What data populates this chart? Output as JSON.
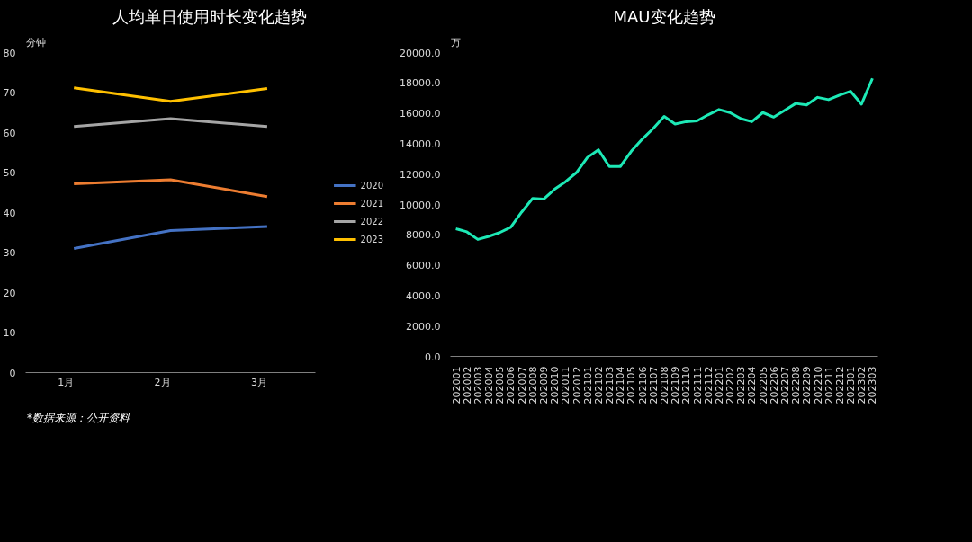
{
  "chart_data": [
    {
      "type": "line",
      "title": "人均单日使用时长变化趋势",
      "ylabel": "分钟",
      "categories": [
        "1月",
        "2月",
        "3月"
      ],
      "series": [
        {
          "name": "2020",
          "color": "#4472c4",
          "values": [
            31,
            35.5,
            36.5
          ]
        },
        {
          "name": "2021",
          "color": "#ed7d31",
          "values": [
            47.2,
            48.2,
            44
          ]
        },
        {
          "name": "2022",
          "color": "#a5a5a5",
          "values": [
            61.5,
            63.5,
            61.5
          ]
        },
        {
          "name": "2023",
          "color": "#ffc000",
          "values": [
            71.2,
            67.8,
            71
          ]
        }
      ],
      "ylim": [
        0,
        80
      ],
      "yticks": [
        0,
        10,
        20,
        30,
        40,
        50,
        60,
        70,
        80
      ],
      "grid": false,
      "legend": "right",
      "marker": "none",
      "line_style": "solid",
      "annotations": [
        "*数据来源：公开资料"
      ]
    },
    {
      "type": "line",
      "title": "MAU变化趋势",
      "ylabel": "万",
      "categories": [
        "202001",
        "202002",
        "202003",
        "202004",
        "202005",
        "202006",
        "202007",
        "202008",
        "202009",
        "202010",
        "202011",
        "202012",
        "202101",
        "202102",
        "202103",
        "202104",
        "202105",
        "202106",
        "202107",
        "202108",
        "202109",
        "202110",
        "202111",
        "202112",
        "202201",
        "202202",
        "202203",
        "202204",
        "202205",
        "202206",
        "202207",
        "202208",
        "202209",
        "202210",
        "202211",
        "202212",
        "202301",
        "202302",
        "202303"
      ],
      "series": [
        {
          "color": "#1de9b6",
          "values": [
            8400,
            8200,
            7700,
            7900,
            8150,
            8500,
            9500,
            10400,
            10350,
            11000,
            11500,
            12100,
            13100,
            13600,
            12500,
            12500,
            13500,
            14300,
            15000,
            15800,
            15300,
            15450,
            15500,
            15900,
            16250,
            16050,
            15650,
            15450,
            16050,
            15750,
            16200,
            16650,
            16550,
            17050,
            16900,
            17200,
            17450,
            16600,
            18300
          ]
        }
      ],
      "ylim": [
        0,
        20000
      ],
      "yticks": [
        {
          "value": 0,
          "label": "0.0"
        },
        {
          "value": 2000,
          "label": "2000.0"
        },
        {
          "value": 4000,
          "label": "4000.0"
        },
        {
          "value": 6000,
          "label": "6000.0"
        },
        {
          "value": 8000,
          "label": "8000.0"
        },
        {
          "value": 10000,
          "label": "10000.0"
        },
        {
          "value": 12000,
          "label": "12000.0"
        },
        {
          "value": 14000,
          "label": "14000.0"
        },
        {
          "value": 16000,
          "label": "16000.0"
        },
        {
          "value": 18000,
          "label": "18000.0"
        },
        {
          "value": 20000,
          "label": "20000.0"
        }
      ],
      "grid": false,
      "legend": false,
      "marker": "none",
      "line_style": "solid"
    }
  ]
}
